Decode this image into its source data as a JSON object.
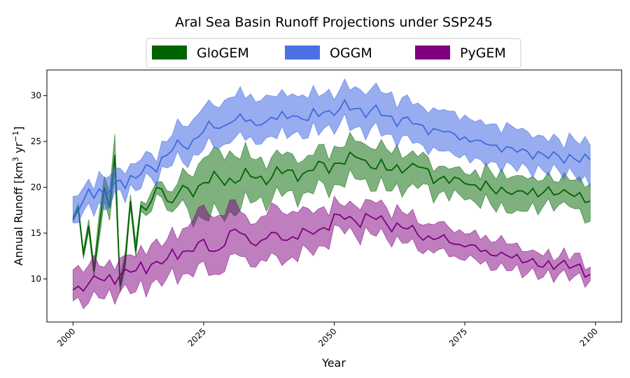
{
  "chart_data": {
    "type": "area",
    "title": "Aral Sea Basin Runoff Projections under SSP245",
    "xlabel": "Year",
    "ylabel": "Annual Runoff [km³ yr⁻¹]",
    "xlim": [
      1995,
      2105
    ],
    "ylim": [
      5.3,
      32.8
    ],
    "xticks": [
      2000,
      2025,
      2050,
      2075,
      2100
    ],
    "yticks": [
      10,
      15,
      20,
      25,
      30
    ],
    "grid": false,
    "legend_position": "top-center",
    "x_start": 2000,
    "x_end": 2099,
    "series": [
      {
        "name": "GloGEM",
        "color": "#006400",
        "x": [
          2000,
          2001,
          2002,
          2003,
          2004,
          2005,
          2006,
          2007,
          2008,
          2009,
          2010,
          2011,
          2012,
          2013,
          2014,
          2015,
          2016,
          2017,
          2018,
          2019,
          2020,
          2025,
          2030,
          2035,
          2040,
          2045,
          2050,
          2055,
          2060,
          2065,
          2070,
          2075,
          2080,
          2085,
          2090,
          2095,
          2099
        ],
        "mean": [
          16.5,
          17.8,
          12.6,
          15.8,
          10.8,
          15.5,
          20.0,
          17.8,
          23.5,
          9.2,
          12.0,
          18.5,
          13.0,
          18.0,
          17.5,
          18.5,
          20.0,
          19.8,
          18.5,
          18.3,
          19.2,
          20.5,
          21.0,
          21.0,
          21.5,
          21.8,
          22.6,
          23.1,
          21.9,
          22.6,
          20.9,
          20.4,
          19.9,
          19.6,
          19.4,
          19.3,
          18.5
        ],
        "upper": [
          16.8,
          18.2,
          13.2,
          16.5,
          11.6,
          17.0,
          21.2,
          19.5,
          25.8,
          10.0,
          13.0,
          19.2,
          14.0,
          18.5,
          18.2,
          19.5,
          20.6,
          20.6,
          19.6,
          19.5,
          20.4,
          23.2,
          24.0,
          23.0,
          23.5,
          23.5,
          24.5,
          25.0,
          24.2,
          24.0,
          22.3,
          21.5,
          21.7,
          21.3,
          20.8,
          20.8,
          20.4
        ],
        "lower": [
          16.2,
          17.4,
          12.2,
          15.2,
          10.3,
          14.2,
          18.5,
          16.4,
          21.5,
          8.5,
          11.2,
          17.8,
          12.4,
          17.4,
          16.9,
          17.4,
          19.3,
          18.9,
          17.5,
          17.3,
          17.9,
          16.5,
          17.4,
          18.5,
          19.0,
          19.5,
          20.3,
          20.8,
          19.6,
          20.4,
          19.3,
          18.6,
          18.1,
          17.5,
          17.9,
          17.9,
          16.3
        ]
      },
      {
        "name": "OGGM",
        "color": "#4169e1",
        "x": [
          2000,
          2003,
          2006,
          2009,
          2012,
          2015,
          2018,
          2021,
          2024,
          2027,
          2030,
          2033,
          2036,
          2039,
          2042,
          2045,
          2048,
          2051,
          2054,
          2057,
          2060,
          2063,
          2066,
          2069,
          2072,
          2075,
          2078,
          2081,
          2084,
          2087,
          2090,
          2093,
          2096,
          2099
        ],
        "mean": [
          16.8,
          19.8,
          19.2,
          20.8,
          21.0,
          22.2,
          23.5,
          24.5,
          25.5,
          26.5,
          27.0,
          27.2,
          26.8,
          27.4,
          27.8,
          27.3,
          28.2,
          28.5,
          28.6,
          28.4,
          27.8,
          27.5,
          26.9,
          26.4,
          26.1,
          25.5,
          25.1,
          24.6,
          24.3,
          23.9,
          23.6,
          23.4,
          23.1,
          23.0
        ],
        "upper": [
          19.0,
          20.9,
          21.0,
          22.1,
          22.6,
          23.7,
          25.0,
          26.7,
          28.0,
          28.9,
          29.8,
          29.7,
          29.5,
          29.9,
          30.2,
          29.7,
          30.2,
          30.6,
          31.0,
          30.7,
          30.2,
          29.8,
          29.2,
          28.7,
          28.3,
          27.9,
          27.4,
          26.9,
          26.7,
          26.1,
          25.6,
          25.3,
          25.2,
          24.6
        ],
        "lower": [
          16.1,
          18.3,
          17.5,
          19.8,
          19.6,
          21.0,
          22.1,
          22.7,
          23.5,
          24.3,
          24.8,
          25.1,
          24.7,
          25.3,
          25.8,
          25.4,
          26.4,
          26.8,
          26.5,
          26.4,
          25.8,
          25.6,
          24.9,
          24.4,
          24.0,
          23.6,
          23.0,
          22.7,
          22.4,
          22.1,
          21.8,
          21.8,
          21.3,
          20.0
        ]
      },
      {
        "name": "PyGEM",
        "color": "#800080",
        "x": [
          2000,
          2003,
          2006,
          2009,
          2012,
          2015,
          2018,
          2021,
          2024,
          2027,
          2030,
          2033,
          2036,
          2039,
          2042,
          2045,
          2048,
          2051,
          2054,
          2057,
          2060,
          2063,
          2066,
          2069,
          2072,
          2075,
          2078,
          2081,
          2084,
          2087,
          2090,
          2093,
          2096,
          2099
        ],
        "mean": [
          8.8,
          9.5,
          9.8,
          10.4,
          10.9,
          11.6,
          12.2,
          13.0,
          14.0,
          13.0,
          15.2,
          14.8,
          14.2,
          15.0,
          14.6,
          15.2,
          15.6,
          17.0,
          16.3,
          16.8,
          16.0,
          15.6,
          14.8,
          14.3,
          14.0,
          13.5,
          13.0,
          12.5,
          12.3,
          11.9,
          11.3,
          11.6,
          11.4,
          10.5
        ],
        "upper": [
          11.0,
          11.5,
          11.3,
          12.3,
          12.4,
          13.8,
          14.3,
          15.5,
          17.8,
          16.7,
          18.6,
          17.0,
          16.8,
          18.0,
          17.4,
          17.7,
          17.9,
          18.2,
          18.0,
          18.6,
          17.8,
          17.3,
          16.1,
          15.9,
          15.6,
          14.9,
          14.3,
          14.1,
          13.8,
          13.0,
          12.5,
          12.4,
          12.8,
          11.3
        ],
        "lower": [
          7.6,
          7.4,
          7.8,
          8.6,
          8.6,
          9.5,
          10.1,
          10.5,
          11.6,
          10.5,
          12.6,
          12.4,
          12.1,
          12.5,
          12.4,
          13.2,
          13.6,
          15.7,
          14.7,
          14.9,
          14.4,
          13.9,
          13.1,
          12.8,
          12.4,
          12.0,
          11.6,
          11.0,
          10.9,
          10.6,
          10.2,
          10.5,
          10.3,
          9.8
        ]
      }
    ]
  }
}
